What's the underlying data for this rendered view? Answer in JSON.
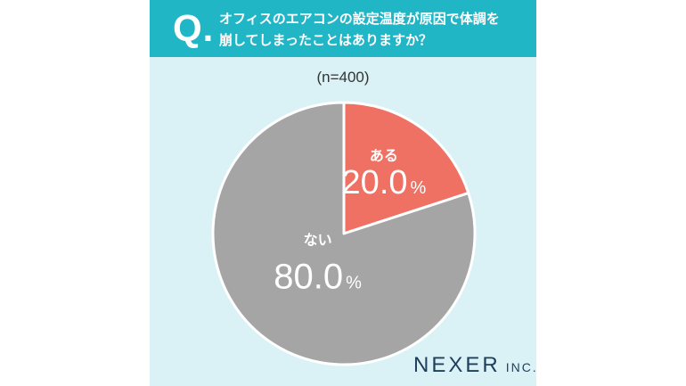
{
  "question": {
    "mark": "Q.",
    "line1": "オフィスのエアコンの設定温度が原因で体調を",
    "line2": "崩してしまったことはありますか？"
  },
  "chart_data": {
    "type": "pie",
    "title": "オフィスのエアコンの設定温度が原因で体調を崩してしまったことはありますか？",
    "sample": "(n=400)",
    "slices": [
      {
        "label": "ある",
        "value": 20.0,
        "display": "20.0",
        "color": "#ef7163"
      },
      {
        "label": "ない",
        "value": 80.0,
        "display": "80.0",
        "color": "#a5a5a5"
      }
    ],
    "unit": "%",
    "start_angle": "12 o'clock",
    "direction": "clockwise"
  },
  "brand": {
    "name": "NEXER",
    "suffix": "INC."
  }
}
